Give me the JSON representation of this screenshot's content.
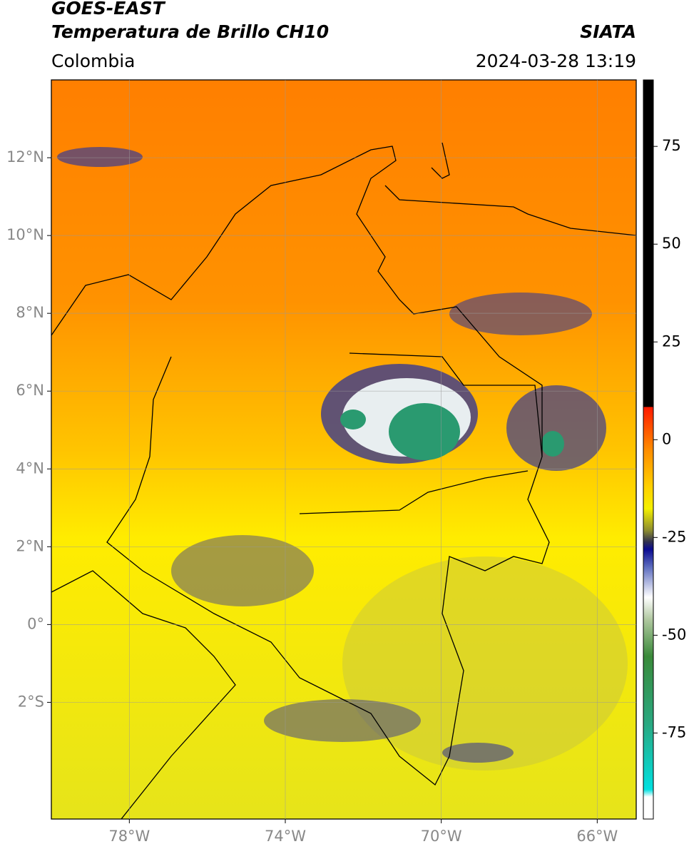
{
  "header": {
    "title": "GOES-EAST",
    "subtitle": "Temperatura de Brillo CH10",
    "source": "SIATA",
    "region": "Colombia",
    "datetime": "2024-03-28 13:19"
  },
  "map": {
    "lon_lim": [
      -80,
      -65
    ],
    "lat_lim": [
      -5,
      14
    ],
    "lon_ticks": [
      {
        "value": -78,
        "label": "78°W"
      },
      {
        "value": -74,
        "label": "74°W"
      },
      {
        "value": -70,
        "label": "70°W"
      },
      {
        "value": -66,
        "label": "66°W"
      }
    ],
    "lat_ticks": [
      {
        "value": 12,
        "label": "12°N"
      },
      {
        "value": 10,
        "label": "10°N"
      },
      {
        "value": 8,
        "label": "8°N"
      },
      {
        "value": 6,
        "label": "6°N"
      },
      {
        "value": 4,
        "label": "4°N"
      },
      {
        "value": 2,
        "label": "2°N"
      },
      {
        "value": 0,
        "label": "0°"
      },
      {
        "value": -2,
        "label": "2°S"
      }
    ]
  },
  "colorbar": {
    "lim": [
      -97,
      92
    ],
    "ticks": [
      75,
      50,
      25,
      0,
      -25,
      -50,
      -75
    ]
  }
}
